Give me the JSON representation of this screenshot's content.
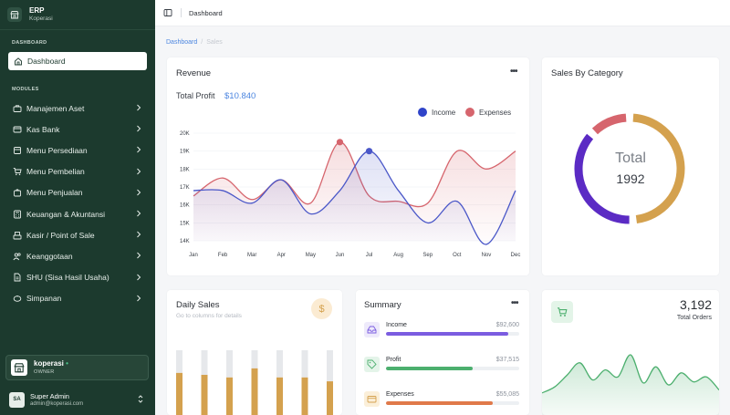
{
  "brand": {
    "name": "ERP",
    "subtitle": "Koperasi"
  },
  "sidebar": {
    "section_dashboard": "DASHBOARD",
    "dashboard_label": "Dashboard",
    "section_modules": "MODULES",
    "items": [
      {
        "label": "Manajemen Aset",
        "icon": "briefcase-icon"
      },
      {
        "label": "Kas Bank",
        "icon": "bank-card-icon"
      },
      {
        "label": "Menu Persediaan",
        "icon": "box-icon"
      },
      {
        "label": "Menu Pembelian",
        "icon": "cart-icon"
      },
      {
        "label": "Menu Penjualan",
        "icon": "bag-icon"
      },
      {
        "label": "Keuangan & Akuntansi",
        "icon": "calculator-icon"
      },
      {
        "label": "Kasir / Point of Sale",
        "icon": "register-icon"
      },
      {
        "label": "Keanggotaan",
        "icon": "users-icon"
      },
      {
        "label": "SHU (Sisa Hasil Usaha)",
        "icon": "file-icon"
      },
      {
        "label": "Simpanan",
        "icon": "piggy-bank-icon"
      }
    ],
    "org": {
      "name": "koperasi",
      "role": "OWNER"
    },
    "user": {
      "initials": "SA",
      "name": "Super Admin",
      "email": "admin@koperasi.com"
    }
  },
  "topbar": {
    "title": "Dashboard"
  },
  "breadcrumb": {
    "parent": "Dashboard",
    "current": "Sales"
  },
  "revenue": {
    "title": "Revenue",
    "total_profit_label": "Total Profit",
    "total_profit_value": "$10.840",
    "legend_income": "Income",
    "legend_expenses": "Expenses",
    "menu_icon": "more-horizontal-icon"
  },
  "sales_by_category": {
    "title": "Sales By Category",
    "center_label": "Total",
    "center_value": "1992"
  },
  "daily_sales": {
    "title": "Daily Sales",
    "subtitle": "Go to columns for details"
  },
  "summary": {
    "title": "Summary",
    "rows": [
      {
        "label": "Income",
        "value": "$92,600",
        "progress": 0.92,
        "color": "#7b5ce0"
      },
      {
        "label": "Profit",
        "value": "$37,515",
        "progress": 0.65,
        "color": "#4caf6e"
      },
      {
        "label": "Expenses",
        "value": "$55,085",
        "progress": 0.8,
        "color": "#e0794a"
      }
    ]
  },
  "total_orders": {
    "value": "3,192",
    "label": "Total Orders"
  },
  "colors": {
    "sidebar": "#1c3a2e",
    "income": "#4a57c8",
    "expenses": "#d6656d",
    "accent": "#4c86e0",
    "gold": "#d4a14e"
  },
  "chart_data": [
    {
      "type": "line",
      "x": [
        "Jan",
        "Feb",
        "Mar",
        "Apr",
        "May",
        "Jun",
        "Jul",
        "Aug",
        "Sep",
        "Oct",
        "Nov",
        "Dec"
      ],
      "y_ticks": [
        "14K",
        "15K",
        "16K",
        "17K",
        "18K",
        "19K",
        "20K"
      ],
      "ylim": [
        14000,
        20000
      ],
      "grid": true,
      "legend": "top-right",
      "series": [
        {
          "name": "Income",
          "color": "#4a57c8",
          "values": [
            16800,
            16800,
            16100,
            17400,
            15500,
            16800,
            19000,
            16800,
            15000,
            16200,
            13800,
            16800
          ]
        },
        {
          "name": "Expenses",
          "color": "#d6656d",
          "values": [
            16500,
            17500,
            16300,
            17400,
            16100,
            19500,
            16500,
            16200,
            16100,
            19000,
            18000,
            19000
          ]
        }
      ],
      "markers": [
        {
          "series": "Expenses",
          "x": "Jun",
          "y": 19500
        },
        {
          "series": "Income",
          "x": "Jul",
          "y": 19000
        }
      ]
    },
    {
      "type": "pie",
      "title": "Sales By Category",
      "slices": [
        {
          "value": 49,
          "color": "#d4a14e"
        },
        {
          "value": 38,
          "color": "#5b2bc4"
        },
        {
          "value": 13,
          "color": "#d6656d"
        }
      ]
    },
    {
      "type": "bar",
      "title": "Daily Sales",
      "series": [
        {
          "values": [
            0.65,
            0.62,
            0.58,
            0.72,
            0.58,
            0.58,
            0.52
          ],
          "color": "#d4a14e"
        },
        {
          "values": [
            0.35,
            0.38,
            0.42,
            0.28,
            0.42,
            0.42,
            0.48
          ],
          "color": "#e6e8eb"
        }
      ]
    },
    {
      "type": "area",
      "title": "Total Orders",
      "values": [
        22,
        28,
        40,
        52,
        35,
        45,
        38,
        60,
        32,
        48,
        30,
        42,
        33,
        38,
        25
      ],
      "color": "#4caf6e"
    }
  ]
}
